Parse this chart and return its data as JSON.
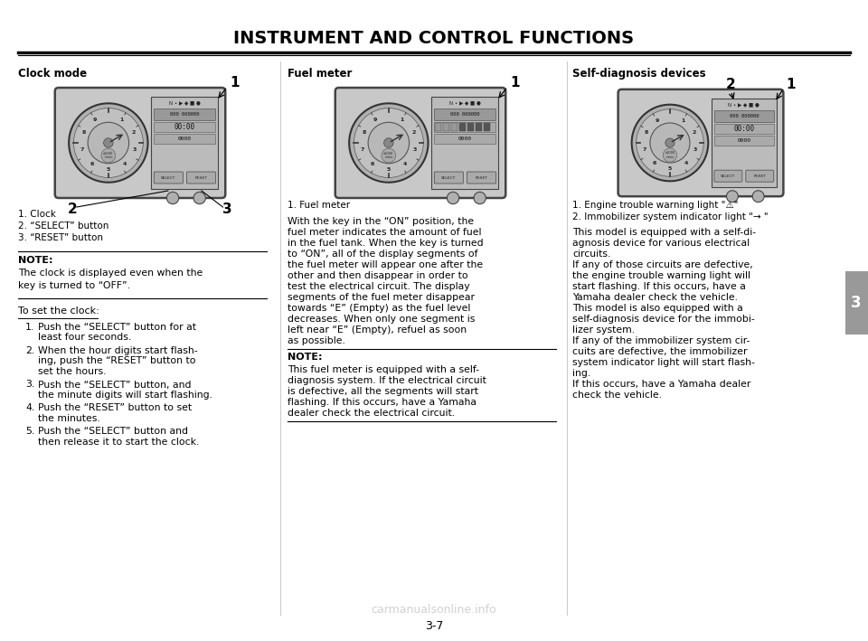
{
  "title": "INSTRUMENT AND CONTROL FUNCTIONS",
  "page_num": "3-7",
  "bg_color": "#ffffff",
  "title_color": "#000000",
  "tab_color": "#888888",
  "tab_label": "3",
  "section_left": {
    "heading": "Clock mode",
    "label1": "1. Clock",
    "label2": "2. “SELECT” button",
    "label3": "3. “RESET” button",
    "note_title": "NOTE:",
    "note_text": "The clock is displayed even when the\nkey is turned to “OFF”.",
    "subheading": "To set the clock:",
    "steps": [
      "Push the “SELECT” button for at\nleast four seconds.",
      "When the hour digits start flash-\ning, push the “RESET” button to\nset the hours.",
      "Push the “SELECT” button, and\nthe minute digits will start flashing.",
      "Push the “RESET” button to set\nthe minutes.",
      "Push the “SELECT” button and\nthen release it to start the clock."
    ]
  },
  "section_mid": {
    "heading": "Fuel meter",
    "label1": "1. Fuel meter",
    "body_text": "With the key in the “ON” position, the\nfuel meter indicates the amount of fuel\nin the fuel tank. When the key is turned\nto “ON”, all of the display segments of\nthe fuel meter will appear one after the\nother and then disappear in order to\ntest the electrical circuit. The display\nsegments of the fuel meter disappear\ntowards “E” (Empty) as the fuel level\ndecreases. When only one segment is\nleft near “E” (Empty), refuel as soon\nas possible.",
    "note_title": "NOTE:",
    "note_text": "This fuel meter is equipped with a self-\ndiagnosis system. If the electrical circuit\nis defective, all the segments will start\nflashing. If this occurs, have a Yamaha\ndealer check the electrical circuit."
  },
  "section_right": {
    "heading": "Self-diagnosis devices",
    "label1": "1. Engine trouble warning light \"⚠\"",
    "label2": "2. Immobilizer system indicator light \"→ \"",
    "body_text": "This model is equipped with a self-di-\nagnosis device for various electrical\ncircuits.\nIf any of those circuits are defective,\nthe engine trouble warning light will\nstart flashing. If this occurs, have a\nYamaha dealer check the vehicle.\nThis model is also equipped with a\nself-diagnosis device for the immobi-\nlizer system.\nIf any of the immobilizer system cir-\ncuits are defective, the immobilizer\nsystem indicator light will start flash-\ning.\nIf this occurs, have a Yamaha dealer\ncheck the vehicle."
  },
  "watermark": "carmanualsonline.info",
  "font_color": "#000000",
  "divider_color": "#cccccc",
  "title_line_color": "#000000"
}
